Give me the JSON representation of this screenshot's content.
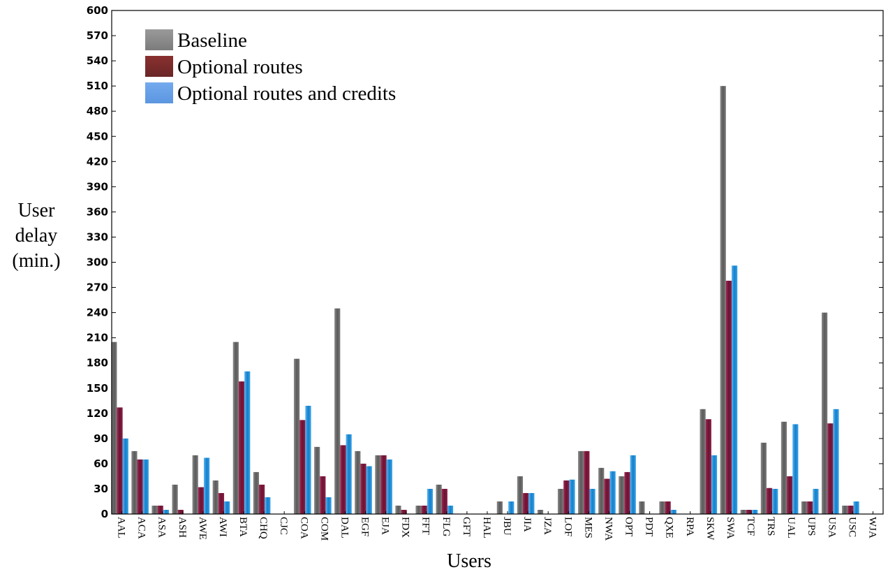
{
  "chart_data": {
    "type": "bar",
    "xlabel": "Users",
    "ylabel_lines": [
      "User",
      "delay",
      "(min.)"
    ],
    "ylim": [
      0,
      600
    ],
    "yticks": [
      0,
      30,
      60,
      90,
      120,
      150,
      180,
      210,
      240,
      270,
      300,
      330,
      360,
      390,
      420,
      450,
      480,
      510,
      540,
      570,
      600
    ],
    "grid": false,
    "legend_position": "top-left",
    "categories": [
      "AAL",
      "ACA",
      "ASA",
      "ASH",
      "AWE",
      "AWI",
      "BTA",
      "CHQ",
      "CJC",
      "COA",
      "COM",
      "DAL",
      "EGF",
      "EJA",
      "FDX",
      "FFT",
      "FLG",
      "GFT",
      "HAL",
      "JBU",
      "JIA",
      "JZA",
      "LOF",
      "MES",
      "NWA",
      "OPT",
      "PDT",
      "QXE",
      "RPA",
      "SKW",
      "SWA",
      "TCF",
      "TRS",
      "UAL",
      "UPS",
      "USA",
      "USC",
      "WJA"
    ],
    "series": [
      {
        "name": "Baseline",
        "color": "#6e6e6e",
        "values": [
          205,
          75,
          10,
          35,
          70,
          40,
          205,
          50,
          0,
          185,
          80,
          245,
          75,
          70,
          10,
          10,
          35,
          0,
          0,
          15,
          45,
          5,
          30,
          75,
          55,
          45,
          15,
          15,
          0,
          125,
          510,
          5,
          85,
          110,
          15,
          240,
          10,
          0
        ]
      },
      {
        "name": "Optional routes",
        "color": "#7d1a3c",
        "values": [
          127,
          65,
          10,
          5,
          32,
          25,
          158,
          35,
          0,
          112,
          45,
          82,
          60,
          70,
          5,
          10,
          30,
          0,
          0,
          0,
          25,
          0,
          40,
          75,
          42,
          50,
          0,
          15,
          0,
          113,
          278,
          5,
          31,
          45,
          15,
          108,
          10,
          0
        ]
      },
      {
        "name": "Optional routes and credits",
        "color": "#1f8fd8",
        "values": [
          90,
          65,
          5,
          0,
          67,
          15,
          170,
          20,
          0,
          129,
          20,
          95,
          57,
          65,
          0,
          30,
          10,
          0,
          0,
          15,
          25,
          0,
          41,
          30,
          51,
          70,
          0,
          5,
          0,
          70,
          296,
          5,
          30,
          107,
          30,
          125,
          15,
          0
        ]
      }
    ]
  }
}
